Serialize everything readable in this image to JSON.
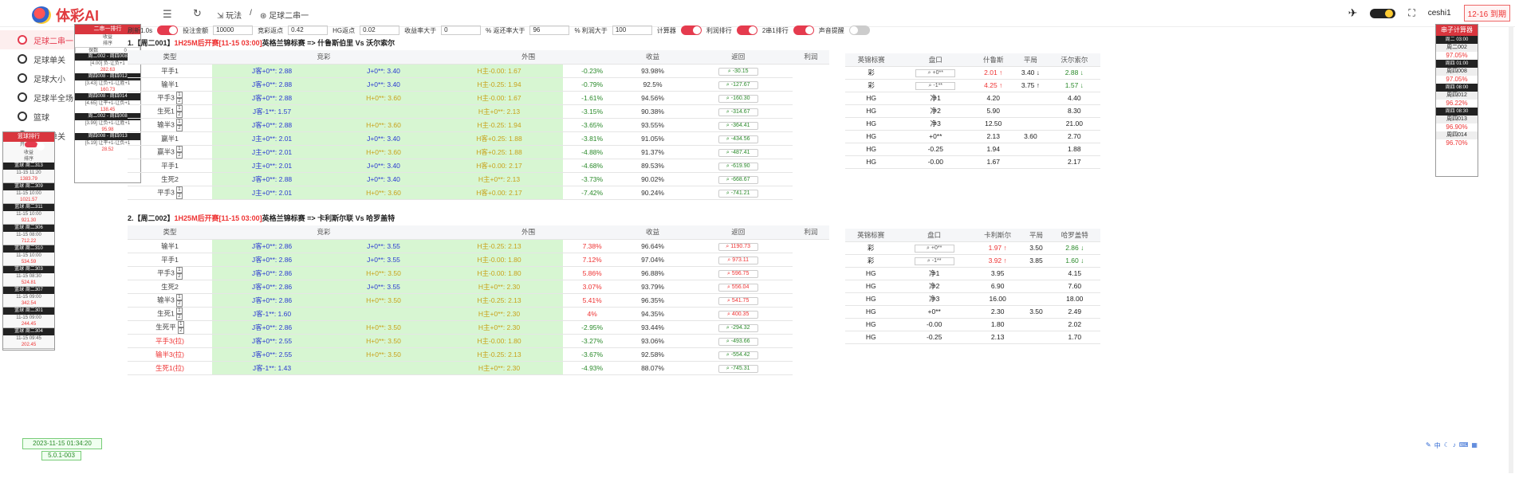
{
  "app": {
    "name": "体彩AI",
    "breadcrumb": [
      "玩法",
      "足球二串一"
    ],
    "user": "ceshi1",
    "expire": "12-16 到期"
  },
  "nav": [
    {
      "label": "足球二串一",
      "active": true
    },
    {
      "label": "足球单关"
    },
    {
      "label": "足球大小"
    },
    {
      "label": "足球半全场"
    },
    {
      "label": "篮球"
    },
    {
      "label": "篮球单关"
    }
  ],
  "filters": {
    "refresh": "刷新1.0s",
    "bet_label": "投注金额",
    "bet": "10000",
    "jc_label": "竞彩返点",
    "jc": "0.42",
    "hg_label": "HG返点",
    "hg": "0.02",
    "profit_label": "收益率大于",
    "profit": "0",
    "rebate_label": "% 返还率大于",
    "rebate": "96",
    "margin_label": "% 利润大于",
    "margin": "100",
    "calc": "计算器",
    "only_profit": "利润排行",
    "only_2x1": "2串1排行",
    "sound": "声音提醒"
  },
  "rank1": {
    "title": "二串一排行",
    "sort1": "收益",
    "sort2": "排序",
    "zero_label": "保数",
    "zero": "0",
    "items": [
      {
        "match": "周二002 - 周四008",
        "bet": "[4.00] 负-让负+1",
        "value": "282.63"
      },
      {
        "match": "周四008 - 周四012",
        "bet": "[3.43] 让负+1-让胜+1",
        "value": "160.73"
      },
      {
        "match": "周四008 - 周四014",
        "bet": "[4.65] 让平+1-让负+1",
        "value": "138.45"
      },
      {
        "match": "周二002 - 周四008",
        "bet": "[3.99] 让负+1-让胜+1",
        "value": "95.98"
      },
      {
        "match": "周四008 - 周四013",
        "bet": "[5.19] 让平+1-让负+1",
        "value": "28.52"
      }
    ]
  },
  "rank2": {
    "title": "篮球排行",
    "toggle": "开",
    "sort1": "收益",
    "sort2": "排序",
    "items": [
      {
        "match": "篮球 周二313",
        "time": "11-15 11:20",
        "value": "1383.79"
      },
      {
        "match": "篮球 周二309",
        "time": "11-15 10:00",
        "value": "1021.57"
      },
      {
        "match": "篮球 周二311",
        "time": "11-15 10:00",
        "value": "921.30"
      },
      {
        "match": "篮球 周二306",
        "time": "11-15 08:00",
        "value": "712.22"
      },
      {
        "match": "篮球 周二310",
        "time": "11-15 10:00",
        "value": "534.59"
      },
      {
        "match": "篮球 周二303",
        "time": "11-15 08:30",
        "value": "524.81"
      },
      {
        "match": "篮球 周二307",
        "time": "11-15 09:00",
        "value": "342.54"
      },
      {
        "match": "篮球 周二301",
        "time": "11-15 09:00",
        "value": "244.45"
      },
      {
        "match": "篮球 周二304",
        "time": "11-15 09:45",
        "value": "202.45"
      }
    ]
  },
  "right_panel": {
    "title": "串子计算器",
    "items": [
      {
        "match": "周二 03:00",
        "label": "周二002",
        "value": "97.05%"
      },
      {
        "match": "周四 01:00",
        "label": "周四008",
        "value": "97.05%"
      },
      {
        "match": "周四 08:00",
        "label": "周四012",
        "value": "96.22%"
      },
      {
        "match": "周四 08:30",
        "label": "周四013",
        "value": "96.90%"
      },
      {
        "match": "",
        "label": "周四014",
        "value": "96.70%"
      }
    ]
  },
  "headers": {
    "main": [
      "类型",
      "竞彩",
      "外围",
      "收益",
      "返回",
      "利润"
    ],
    "odds": [
      "英锦标赛",
      "盘口",
      "",
      "平局",
      ""
    ]
  },
  "sections": [
    {
      "num": "1.",
      "tag": "【周二001】",
      "time": "1H25M后开赛[11-15 03:00]",
      "league": "英格兰锦标赛 => 什鲁斯伯里 Vs 沃尔索尔",
      "home": "什鲁斯",
      "away": "沃尔索尔",
      "rows": [
        {
          "type": "平手1",
          "red": false,
          "stack": false,
          "jc1": "J客+0**: 2.88",
          "jc2": "J+0**: 3.40",
          "jc2y": false,
          "wai": "H主-0.00: 1.67",
          "waiy": true,
          "shou": "-0.23%",
          "fan": "93.98%",
          "li": "-30.15"
        },
        {
          "type": "输半1",
          "red": false,
          "stack": false,
          "jc1": "J客+0**: 2.88",
          "jc2": "J+0**: 3.40",
          "jc2y": false,
          "wai": "H主-0.25: 1.94",
          "waiy": true,
          "shou": "-0.79%",
          "fan": "92.5%",
          "li": "-127.67"
        },
        {
          "type": "平手3",
          "red": false,
          "stack": true,
          "jc1": "J客+0**: 2.88",
          "jc2": "H+0**: 3.60",
          "jc2y": true,
          "wai": "H主-0.00: 1.67",
          "waiy": true,
          "shou": "-1.61%",
          "fan": "94.56%",
          "li": "-160.30"
        },
        {
          "type": "生死1",
          "red": false,
          "stack": true,
          "jc1": "J客-1**: 1.57",
          "jc2": "",
          "jc2y": false,
          "wai": "H主+0**: 2.13",
          "waiy": true,
          "shou": "-3.15%",
          "fan": "90.38%",
          "li": "-314.67"
        },
        {
          "type": "输半3",
          "red": false,
          "stack": true,
          "jc1": "J客+0**: 2.88",
          "jc2": "H+0**: 3.60",
          "jc2y": true,
          "wai": "H主-0.25: 1.94",
          "waiy": true,
          "shou": "-3.65%",
          "fan": "93.55%",
          "li": "-364.41"
        },
        {
          "type": "赢半1",
          "red": false,
          "stack": false,
          "jc1": "J主+0**: 2.01",
          "jc2": "J+0**: 3.40",
          "jc2y": false,
          "wai": "H客+0.25: 1.88",
          "waiy": true,
          "shou": "-3.81%",
          "fan": "91.05%",
          "li": "-434.56"
        },
        {
          "type": "赢半3",
          "red": false,
          "stack": true,
          "jc1": "J主+0**: 2.01",
          "jc2": "H+0**: 3.60",
          "jc2y": true,
          "wai": "H客+0.25: 1.88",
          "waiy": true,
          "shou": "-4.88%",
          "fan": "91.37%",
          "li": "-487.41"
        },
        {
          "type": "平手1",
          "red": false,
          "stack": false,
          "jc1": "J主+0**: 2.01",
          "jc2": "J+0**: 3.40",
          "jc2y": false,
          "wai": "H客+0.00: 2.17",
          "waiy": true,
          "shou": "-4.68%",
          "fan": "89.53%",
          "li": "-619.90"
        },
        {
          "type": "生死2",
          "red": false,
          "stack": false,
          "jc1": "J客+0**: 2.88",
          "jc2": "J+0**: 3.40",
          "jc2y": false,
          "wai": "H主+0**: 2.13",
          "waiy": true,
          "shou": "-3.73%",
          "fan": "90.02%",
          "li": "-668.67"
        },
        {
          "type": "平手3",
          "red": false,
          "stack": true,
          "jc1": "J主+0**: 2.01",
          "jc2": "H+0**: 3.60",
          "jc2y": true,
          "wai": "H客+0.00: 2.17",
          "waiy": true,
          "shou": "-7.42%",
          "fan": "90.24%",
          "li": "-741.21"
        }
      ],
      "odds": [
        {
          "co": "彩",
          "pan": "+0**",
          "home": "2.01 ↑",
          "draw": "3.40 ↓",
          "away": "2.88 ↓",
          "hl": true,
          "q": true
        },
        {
          "co": "彩",
          "pan": "-1**",
          "home": "4.25 ↑",
          "draw": "3.75 ↑",
          "away": "1.57 ↓",
          "hl": true,
          "q": true
        },
        {
          "co": "HG",
          "pan": "净1",
          "home": "4.20",
          "draw": "",
          "away": "4.40"
        },
        {
          "co": "HG",
          "pan": "净2",
          "home": "5.90",
          "draw": "",
          "away": "8.30"
        },
        {
          "co": "HG",
          "pan": "净3",
          "home": "12.50",
          "draw": "",
          "away": "21.00"
        },
        {
          "co": "HG",
          "pan": "+0**",
          "home": "2.13",
          "draw": "3.60",
          "away": "2.70"
        },
        {
          "co": "HG",
          "pan": "-0.25",
          "home": "1.94",
          "draw": "",
          "away": "1.88"
        },
        {
          "co": "HG",
          "pan": "-0.00",
          "home": "1.67",
          "draw": "",
          "away": "2.17"
        }
      ]
    },
    {
      "num": "2.",
      "tag": "【周二002】",
      "time": "1H25M后开赛[11-15 03:00]",
      "league": "英格兰锦标赛 => 卡利斯尔联 Vs 哈罗盖特",
      "home": "卡利斯尔",
      "away": "哈罗盖特",
      "rows": [
        {
          "type": "输半1",
          "red": false,
          "stack": false,
          "jc1": "J客+0**: 2.86",
          "jc2": "J+0**: 3.55",
          "jc2y": false,
          "wai": "H主-0.25: 2.13",
          "waiy": true,
          "shou": "7.38%",
          "fan": "96.64%",
          "li": "1190.73",
          "pos": true
        },
        {
          "type": "平手1",
          "red": false,
          "stack": false,
          "jc1": "J客+0**: 2.86",
          "jc2": "J+0**: 3.55",
          "jc2y": false,
          "wai": "H主-0.00: 1.80",
          "waiy": true,
          "shou": "7.12%",
          "fan": "97.04%",
          "li": "973.11",
          "pos": true
        },
        {
          "type": "平手3",
          "red": false,
          "stack": true,
          "jc1": "J客+0**: 2.86",
          "jc2": "H+0**: 3.50",
          "jc2y": true,
          "wai": "H主-0.00: 1.80",
          "waiy": true,
          "shou": "5.86%",
          "fan": "96.88%",
          "li": "596.75",
          "pos": true
        },
        {
          "type": "生死2",
          "red": false,
          "stack": false,
          "jc1": "J客+0**: 2.86",
          "jc2": "J+0**: 3.55",
          "jc2y": false,
          "wai": "H主+0**: 2.30",
          "waiy": true,
          "shou": "3.07%",
          "fan": "93.79%",
          "li": "556.04",
          "pos": true
        },
        {
          "type": "输半3",
          "red": false,
          "stack": true,
          "jc1": "J客+0**: 2.86",
          "jc2": "H+0**: 3.50",
          "jc2y": true,
          "wai": "H主-0.25: 2.13",
          "waiy": true,
          "shou": "5.41%",
          "fan": "96.35%",
          "li": "541.75",
          "pos": true
        },
        {
          "type": "生死1",
          "red": false,
          "stack": true,
          "jc1": "J客-1**: 1.60",
          "jc2": "",
          "jc2y": false,
          "wai": "H主+0**: 2.30",
          "waiy": true,
          "shou": "4%",
          "fan": "94.35%",
          "li": "400.35",
          "pos": true
        },
        {
          "type": "生死平",
          "red": false,
          "stack": true,
          "jc1": "J客+0**: 2.86",
          "jc2": "H+0**: 3.50",
          "jc2y": true,
          "wai": "H主+0**: 2.30",
          "waiy": true,
          "shou": "-2.95%",
          "fan": "93.44%",
          "li": "-294.32"
        },
        {
          "type": "平手3(拉)",
          "red": true,
          "stack": false,
          "jc1": "J客+0**: 2.55",
          "jc2": "H+0**: 3.50",
          "jc2y": true,
          "wai": "H主-0.00: 1.80",
          "waiy": true,
          "shou": "-3.27%",
          "fan": "93.06%",
          "li": "-493.66"
        },
        {
          "type": "输半3(拉)",
          "red": true,
          "stack": false,
          "jc1": "J客+0**: 2.55",
          "jc2": "H+0**: 3.50",
          "jc2y": true,
          "wai": "H主-0.25: 2.13",
          "waiy": true,
          "shou": "-3.67%",
          "fan": "92.58%",
          "li": "-554.42"
        },
        {
          "type": "生死1(拉)",
          "red": true,
          "stack": false,
          "jc1": "J客-1**: 1.43",
          "jc2": "",
          "jc2y": false,
          "wai": "H主+0**: 2.30",
          "waiy": true,
          "shou": "-4.93%",
          "fan": "88.07%",
          "li": "-745.31"
        }
      ],
      "odds": [
        {
          "co": "彩",
          "pan": "+0**",
          "home": "1.97 ↑",
          "draw": "3.50",
          "away": "2.86 ↓",
          "hl": true,
          "q": true
        },
        {
          "co": "彩",
          "pan": "-1**",
          "home": "3.92 ↑",
          "draw": "3.85",
          "away": "1.60 ↓",
          "hl": true,
          "q": true
        },
        {
          "co": "HG",
          "pan": "净1",
          "home": "3.95",
          "draw": "",
          "away": "4.15"
        },
        {
          "co": "HG",
          "pan": "净2",
          "home": "6.90",
          "draw": "",
          "away": "7.60"
        },
        {
          "co": "HG",
          "pan": "净3",
          "home": "16.00",
          "draw": "",
          "away": "18.00"
        },
        {
          "co": "HG",
          "pan": "+0**",
          "home": "2.30",
          "draw": "3.50",
          "away": "2.49"
        },
        {
          "co": "HG",
          "pan": "-0.00",
          "home": "1.80",
          "draw": "",
          "away": "2.02"
        },
        {
          "co": "HG",
          "pan": "-0.25",
          "home": "2.13",
          "draw": "",
          "away": "1.70"
        }
      ]
    }
  ],
  "footer": {
    "datetime": "2023-11-15 01:34:20",
    "version": "5.0.1-003"
  }
}
